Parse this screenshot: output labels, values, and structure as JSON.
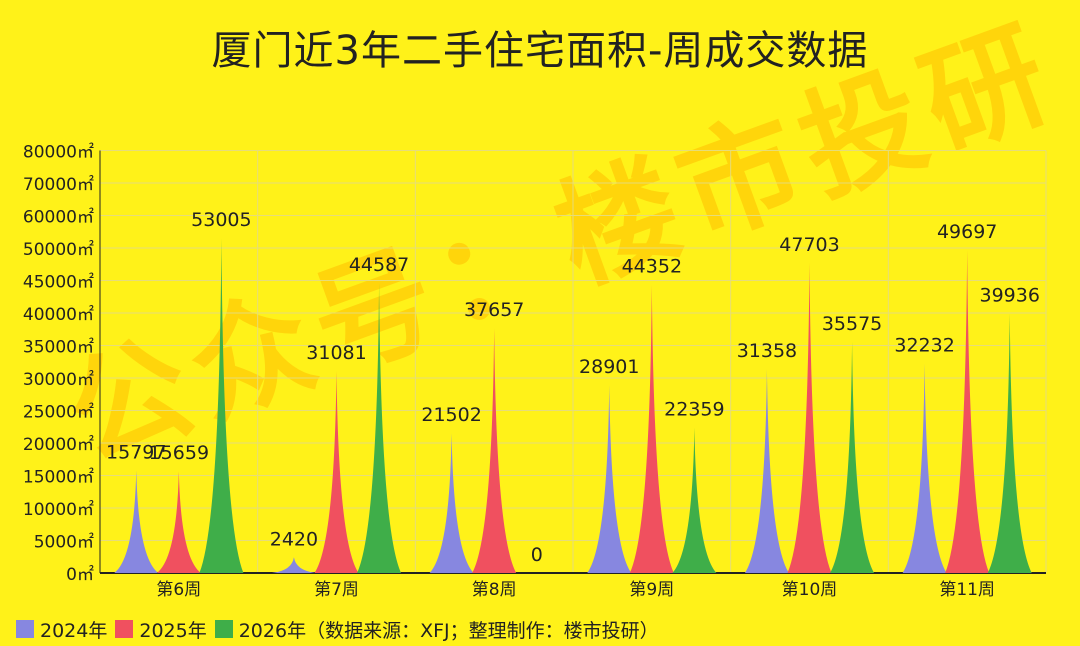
{
  "chart_data": {
    "type": "area",
    "title": "厦门近3年二手住宅面积-周成交数据",
    "categories": [
      "第6周",
      "第7周",
      "第8周",
      "第9周",
      "第10周",
      "第11周"
    ],
    "series": [
      {
        "name": "2024年",
        "color": "#8787e0",
        "values": [
          15797,
          2420,
          21502,
          28901,
          31358,
          32232
        ]
      },
      {
        "name": "2025年",
        "color": "#f0505f",
        "values": [
          15659,
          31081,
          37657,
          44352,
          47703,
          49697
        ]
      },
      {
        "name": "2026年",
        "color": "#3fae49",
        "values": [
          53005,
          44587,
          0,
          22359,
          35575,
          39936
        ]
      }
    ],
    "y_ticks": [
      "0㎡",
      "5000㎡",
      "10000㎡",
      "15000㎡",
      "20000㎡",
      "25000㎡",
      "30000㎡",
      "35000㎡",
      "40000㎡",
      "45000㎡",
      "50000㎡",
      "60000㎡",
      "70000㎡",
      "80000㎡"
    ],
    "legend_note": "（数据来源：XFJ；整理制作：楼市投研）",
    "watermark": "公众号：楼市投研",
    "grid": true,
    "legend_position": "bottom-left"
  }
}
